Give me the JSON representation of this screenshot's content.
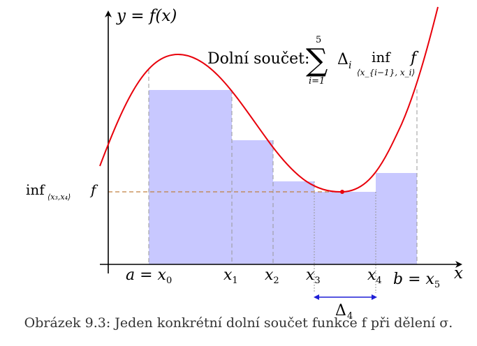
{
  "figure": {
    "y_axis_label": "y = f(x)",
    "x_axis_label": "x",
    "annotation": {
      "label": "Dolní součet:",
      "sum_upper": "5",
      "sum_lower": "i=1",
      "delta": "Δ",
      "delta_sub": "i",
      "inf": "inf",
      "inf_sub": "⟨x_{i−1}, x_i⟩",
      "f": "f"
    },
    "inf_label": {
      "inf": "inf",
      "sub": "⟨x₃,x₄⟩",
      "f": "f"
    },
    "ticks": [
      {
        "main": "a = x",
        "sub": "0"
      },
      {
        "main": "x",
        "sub": "1"
      },
      {
        "main": "x",
        "sub": "2"
      },
      {
        "main": "x",
        "sub": "3"
      },
      {
        "main": "x",
        "sub": "4"
      },
      {
        "main": "b = x",
        "sub": "5"
      }
    ],
    "delta4": {
      "main": "Δ",
      "sub": "4"
    },
    "colors": {
      "curve": "#e8000b",
      "bars": "#c8c8ff",
      "dashes": "#999999",
      "inf_line": "#c08040",
      "delta_arrow": "#1f1fd6",
      "axes": "#000000"
    }
  },
  "caption": "Obrázek 9.3: Jeden konkrétní dolní součet funkce f při dělení σ."
}
